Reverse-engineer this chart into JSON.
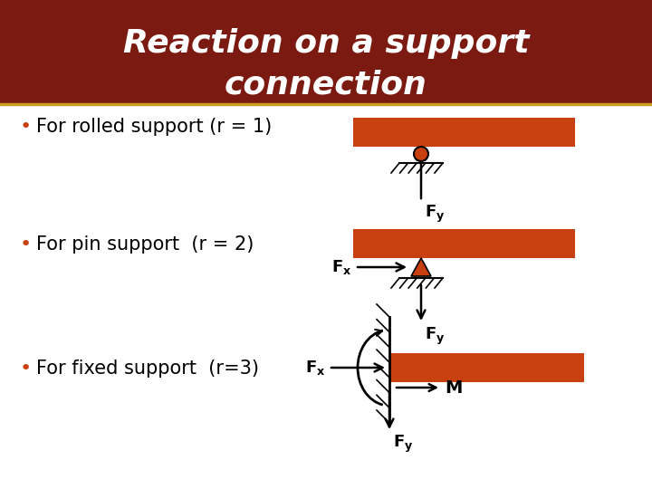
{
  "title_line1": "Reaction on a support",
  "title_line2": "connection",
  "title_bg_color": "#7B1A10",
  "title_text_color": "#FFFFFF",
  "bar_color": "#C84010",
  "bg_color": "#FFFFFF",
  "bullet_text_color": "#000000",
  "label_color": "#000000",
  "sep_color": "#C8A020",
  "bullet1": "For rolled support (r = 1)",
  "bullet2": "For pin support  (r = 2)",
  "bullet3": "For fixed support  (r=3)",
  "title_fontsize": 26,
  "bullet_fontsize": 15,
  "label_fontsize": 13
}
